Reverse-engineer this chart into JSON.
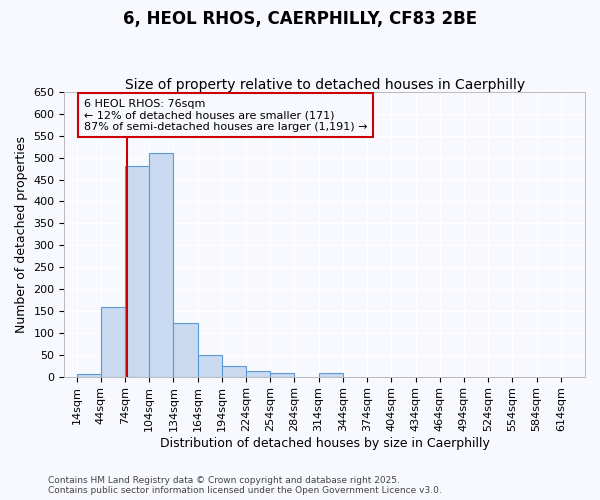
{
  "title": "6, HEOL RHOS, CAERPHILLY, CF83 2BE",
  "subtitle": "Size of property relative to detached houses in Caerphilly",
  "xlabel": "Distribution of detached houses by size in Caerphilly",
  "ylabel": "Number of detached properties",
  "bin_edges": [
    14,
    44,
    74,
    104,
    134,
    164,
    194,
    224,
    254,
    284,
    314,
    344,
    374,
    404,
    434,
    464,
    494,
    524,
    554,
    584,
    614
  ],
  "bar_heights": [
    5,
    160,
    480,
    510,
    123,
    50,
    25,
    12,
    8,
    0,
    8,
    0,
    0,
    0,
    0,
    0,
    0,
    0,
    0,
    0
  ],
  "bar_color": "#c8d9f0",
  "bar_edge_color": "#5b9bd5",
  "property_size": 76,
  "red_line_color": "#cc0000",
  "annotation_text": "6 HEOL RHOS: 76sqm\n← 12% of detached houses are smaller (171)\n87% of semi-detached houses are larger (1,191) →",
  "annotation_box_color": "#cc0000",
  "ylim": [
    0,
    650
  ],
  "yticks": [
    0,
    50,
    100,
    150,
    200,
    250,
    300,
    350,
    400,
    450,
    500,
    550,
    600,
    650
  ],
  "background_color": "#f7f9ff",
  "grid_color": "#ffffff",
  "footer_text": "Contains HM Land Registry data © Crown copyright and database right 2025.\nContains public sector information licensed under the Open Government Licence v3.0.",
  "title_fontsize": 12,
  "subtitle_fontsize": 10,
  "axis_label_fontsize": 9,
  "tick_fontsize": 8,
  "annotation_fontsize": 8,
  "footer_fontsize": 6.5
}
